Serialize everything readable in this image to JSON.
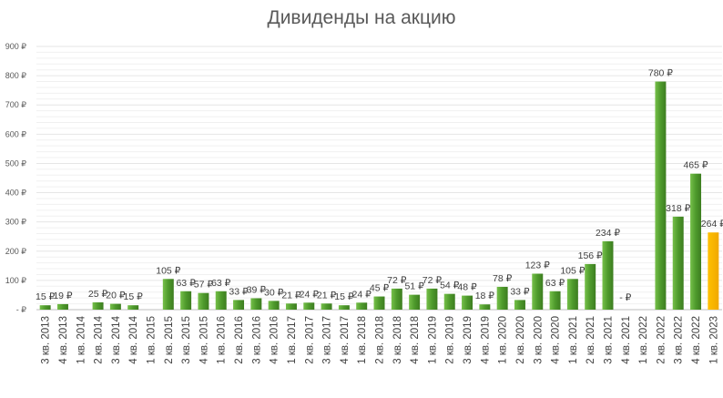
{
  "chart_data": {
    "type": "bar",
    "title": "Дивиденды на акцию",
    "xlabel": "",
    "ylabel": "",
    "ylim": [
      0,
      900
    ],
    "yticks": [
      {
        "value": 0,
        "label": "-  ₽"
      },
      {
        "value": 100,
        "label": "100 ₽"
      },
      {
        "value": 200,
        "label": "200 ₽"
      },
      {
        "value": 300,
        "label": "300 ₽"
      },
      {
        "value": 400,
        "label": "400 ₽"
      },
      {
        "value": 500,
        "label": "500 ₽"
      },
      {
        "value": 600,
        "label": "600 ₽"
      },
      {
        "value": 700,
        "label": "700 ₽"
      },
      {
        "value": 800,
        "label": "800 ₽"
      },
      {
        "value": 900,
        "label": "900 ₽"
      }
    ],
    "grid": true,
    "legend": "none",
    "colors": {
      "bar": "#4e9a2c",
      "bar_dark": "#3d7d20",
      "bar_light": "#76c04a",
      "highlight": "#ffc000",
      "highlight_dark": "#f0a800",
      "grid": "#e6e6e6",
      "axis": "#bfbfbf"
    },
    "categories": [
      "3 кв. 2013",
      "4 кв. 2013",
      "1 кв. 2014",
      "2 кв. 2014",
      "3 кв. 2014",
      "4 кв. 2014",
      "1 кв. 2015",
      "2 кв. 2015",
      "3 кв. 2015",
      "4 кв. 2015",
      "1 кв. 2016",
      "2 кв. 2016",
      "3 кв. 2016",
      "4 кв. 2016",
      "1 кв. 2017",
      "2 кв. 2017",
      "3 кв. 2017",
      "4 кв. 2017",
      "1 кв. 2018",
      "2 кв. 2018",
      "3 кв. 2018",
      "4 кв. 2018",
      "1 кв. 2019",
      "2 кв. 2019",
      "3 кв. 2019",
      "4 кв. 2019",
      "1 кв. 2020",
      "2 кв. 2020",
      "3 кв. 2020",
      "4 кв. 2020",
      "1 кв. 2021",
      "2 кв. 2021",
      "3 кв. 2021",
      "4 кв. 2021",
      "1 кв. 2022",
      "2 кв. 2022",
      "3 кв. 2022",
      "4 кв. 2022",
      "1 кв. 2023"
    ],
    "values": [
      15,
      19,
      0,
      25,
      20,
      15,
      0,
      105,
      63,
      57,
      63,
      33,
      39,
      30,
      21,
      24,
      21,
      15,
      24,
      45,
      72,
      51,
      72,
      54,
      48,
      18,
      78,
      33,
      123,
      63,
      105,
      156,
      234,
      0,
      0,
      780,
      318,
      465,
      264
    ],
    "data_labels": [
      "15 ₽",
      "19 ₽",
      "",
      "25 ₽",
      "20 ₽",
      "15 ₽",
      "",
      "105 ₽",
      "63 ₽",
      "57 ₽",
      "63 ₽",
      "33 ₽",
      "39 ₽",
      "30 ₽",
      "21 ₽",
      "24 ₽",
      "21 ₽",
      "15 ₽",
      "24 ₽",
      "45 ₽",
      "72 ₽",
      "51 ₽",
      "72 ₽",
      "54 ₽",
      "48 ₽",
      "18 ₽",
      "78 ₽",
      "33 ₽",
      "123 ₽",
      "63 ₽",
      "105 ₽",
      "156 ₽",
      "234 ₽",
      "-   ₽",
      "",
      "780 ₽",
      "318 ₽",
      "465 ₽",
      "264 ₽"
    ],
    "highlight_index": 38
  }
}
